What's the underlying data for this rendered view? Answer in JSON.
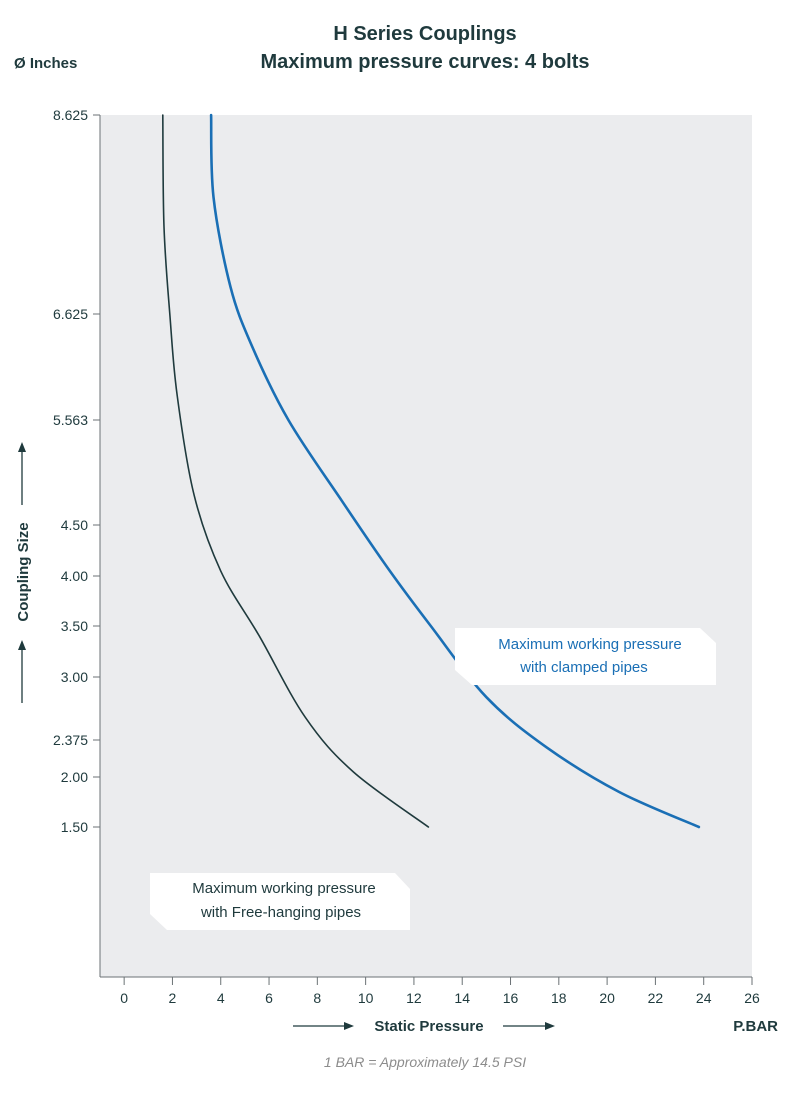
{
  "chart_data": {
    "type": "line",
    "title": "H Series Couplings",
    "subtitle": "Maximum pressure curves: 4 bolts",
    "y_unit_label": "Ø Inches",
    "ylabel": "Coupling Size",
    "xlabel": "Static Pressure",
    "x_unit_label": "P.BAR",
    "footnote": "1 BAR = Approximately 14.5 PSI",
    "xlim": [
      -1,
      26
    ],
    "x_ticks": [
      0,
      2,
      4,
      6,
      8,
      10,
      12,
      14,
      16,
      18,
      20,
      22,
      24,
      26
    ],
    "y_ticks": [
      {
        "label": "8.625"
      },
      {
        "label": "6.625"
      },
      {
        "label": "5.563"
      },
      {
        "label": "4.50"
      },
      {
        "label": "4.00"
      },
      {
        "label": "3.50"
      },
      {
        "label": "3.00"
      },
      {
        "label": "2.375"
      },
      {
        "label": "2.00"
      },
      {
        "label": "1.50"
      }
    ],
    "grid": false,
    "series": [
      {
        "name": "Maximum working pressure with clamped pipes",
        "label_lines": [
          "Maximum working pressure",
          "with clamped pipes"
        ],
        "color": "#1a6fb5",
        "points": [
          {
            "x": 3.6,
            "y": 8.625
          },
          {
            "x": 3.7,
            "y": 7.8
          },
          {
            "x": 4.4,
            "y": 6.9
          },
          {
            "x": 5.3,
            "y": 6.3
          },
          {
            "x": 6.8,
            "y": 5.563
          },
          {
            "x": 9.0,
            "y": 4.75
          },
          {
            "x": 11.0,
            "y": 4.05
          },
          {
            "x": 12.7,
            "y": 3.5
          },
          {
            "x": 15.0,
            "y": 2.8
          },
          {
            "x": 17.5,
            "y": 2.3
          },
          {
            "x": 20.5,
            "y": 1.85
          },
          {
            "x": 23.8,
            "y": 1.5
          }
        ]
      },
      {
        "name": "Maximum working pressure with Free-hanging pipes",
        "label_lines": [
          "Maximum working pressure",
          "with Free-hanging pipes"
        ],
        "color": "#1f3a3d",
        "points": [
          {
            "x": 1.6,
            "y": 8.625
          },
          {
            "x": 1.65,
            "y": 7.5
          },
          {
            "x": 1.9,
            "y": 6.6
          },
          {
            "x": 2.2,
            "y": 5.8
          },
          {
            "x": 2.9,
            "y": 4.8
          },
          {
            "x": 4.0,
            "y": 4.05
          },
          {
            "x": 5.6,
            "y": 3.4
          },
          {
            "x": 7.5,
            "y": 2.6
          },
          {
            "x": 9.5,
            "y": 2.05
          },
          {
            "x": 12.6,
            "y": 1.5
          }
        ]
      }
    ]
  }
}
